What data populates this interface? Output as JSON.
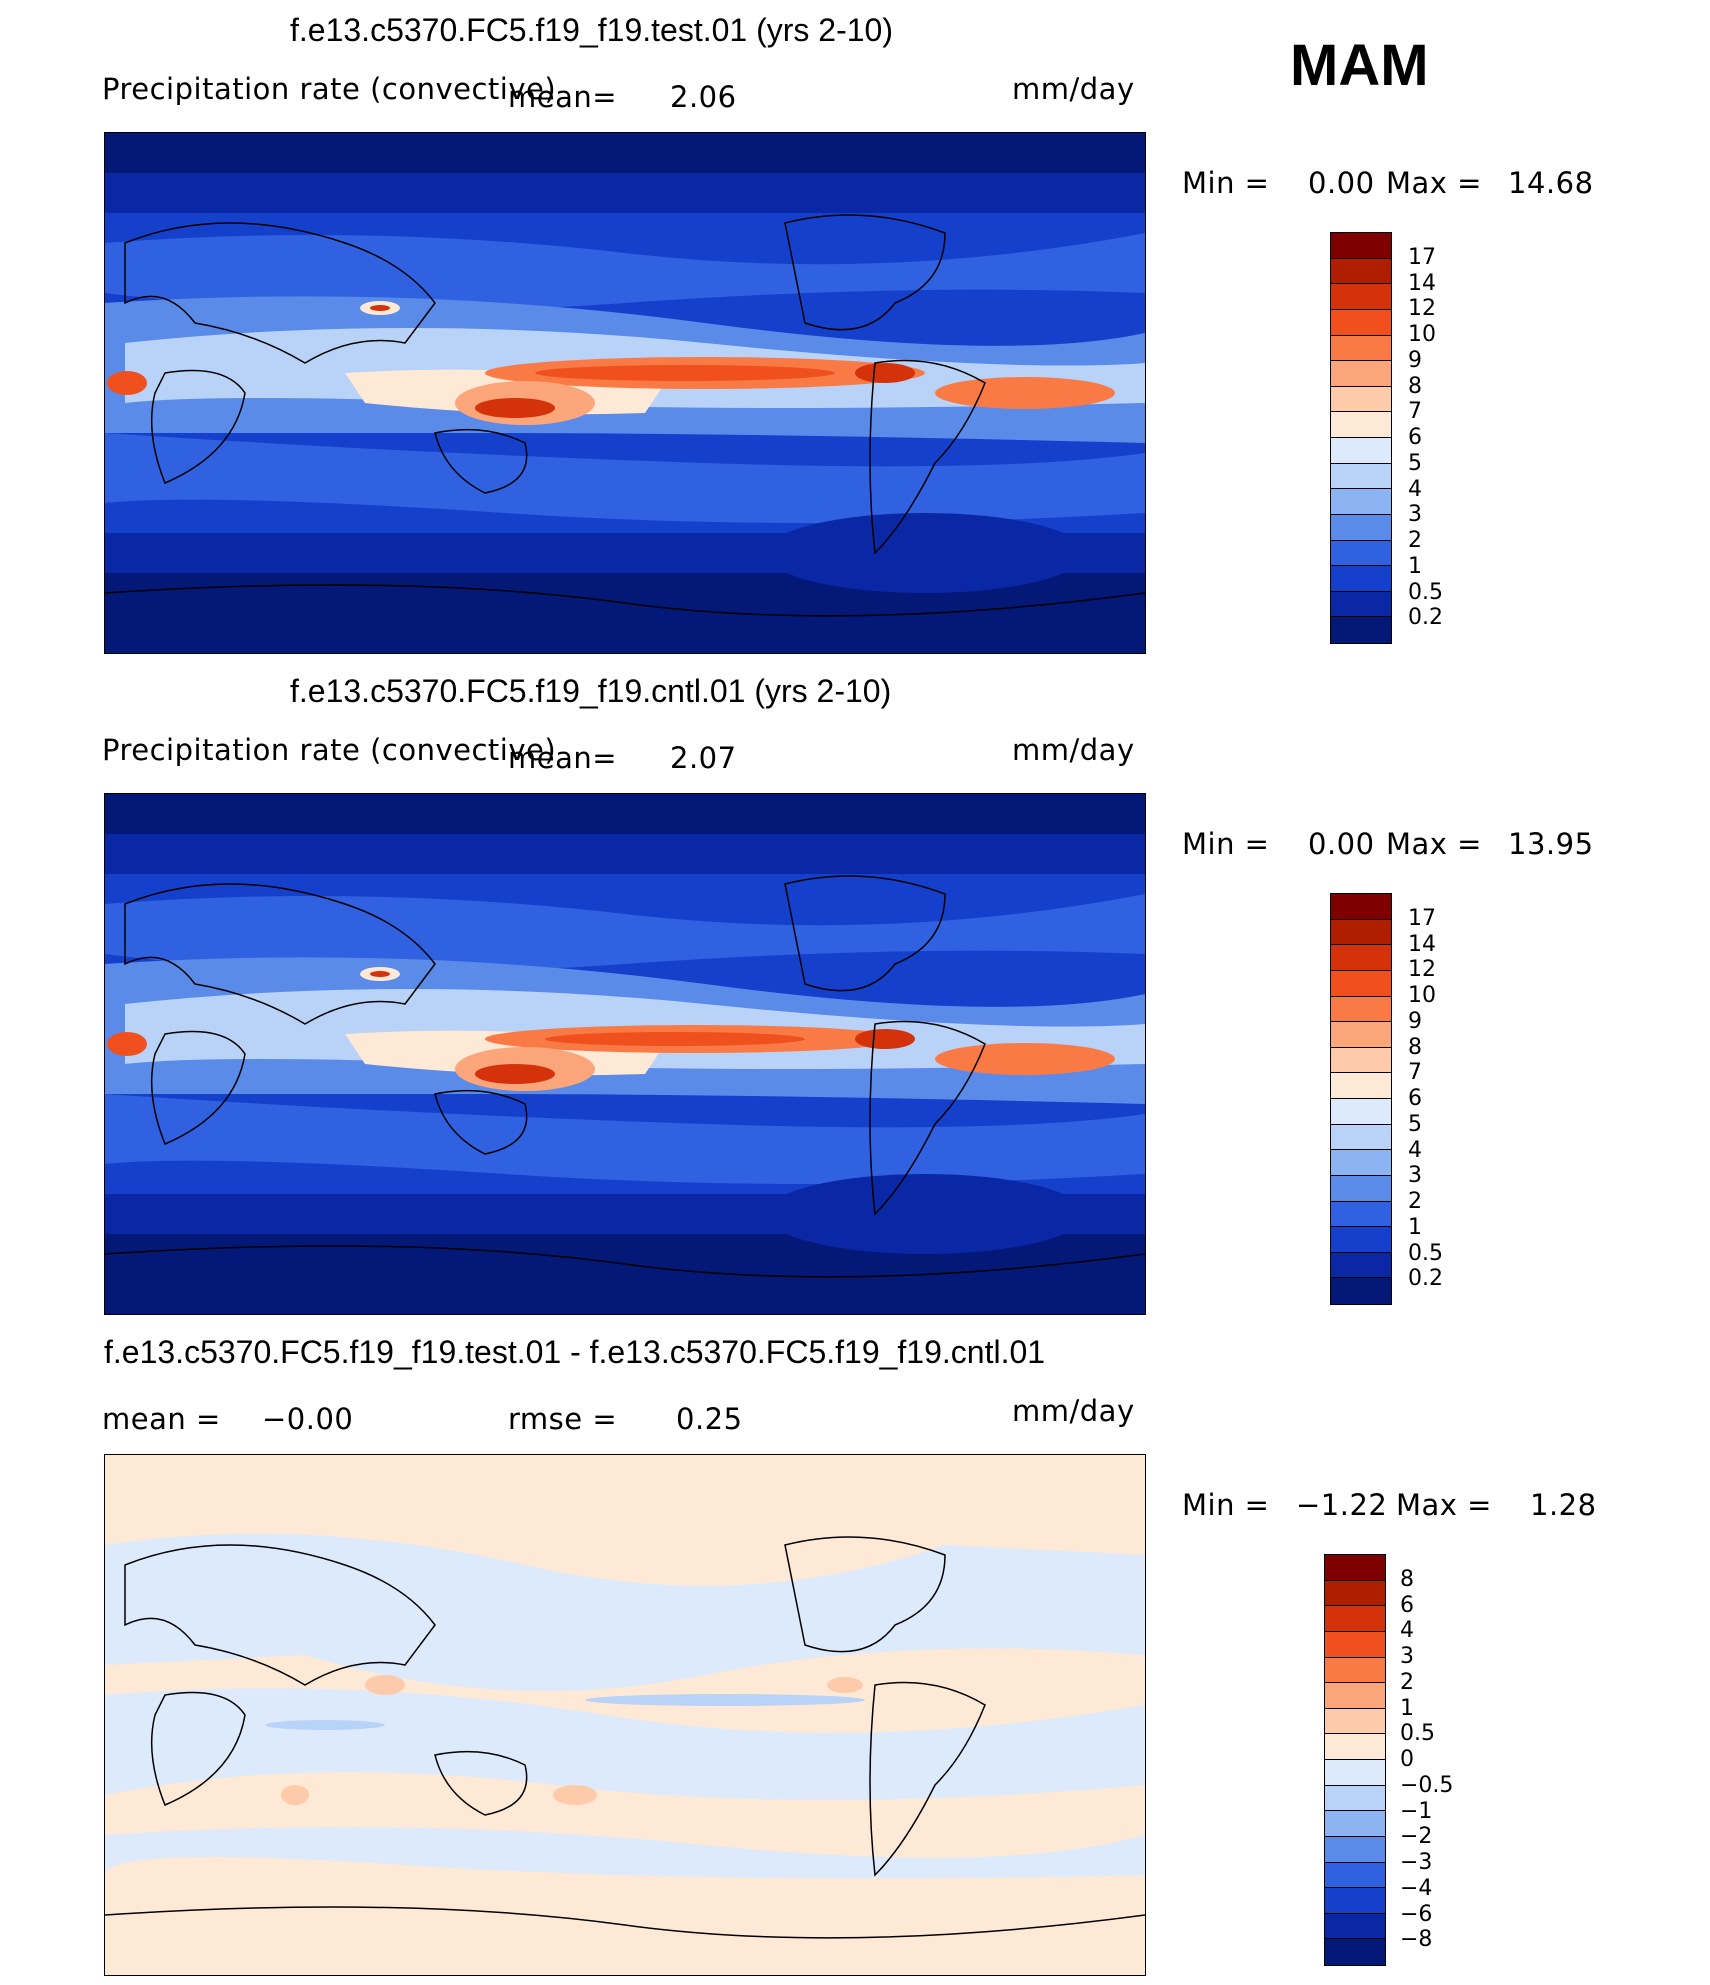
{
  "season": "MAM",
  "units": "mm/day",
  "panels": [
    {
      "title": "f.e13.c5370.FC5.f19_f19.test.01 (yrs 2-10)",
      "field_label": "Precipitation rate (convective)",
      "mean_label": "mean=",
      "mean_value": "2.06",
      "minmax_label": "Min =",
      "min_value": "0.00",
      "max_label": "Max =",
      "max_value": "14.68",
      "colorbar": {
        "labels": [
          "17",
          "14",
          "12",
          "10",
          "9",
          "8",
          "7",
          "6",
          "5",
          "4",
          "3",
          "2",
          "1",
          "0.5",
          "0.2"
        ],
        "colors": [
          "#7f0000",
          "#b01e00",
          "#d4320a",
          "#f0501e",
          "#f97a45",
          "#fba57b",
          "#fdcaaa",
          "#fde9d6",
          "#ddeafb",
          "#b8d3f7",
          "#8cb4f2",
          "#5a8be8",
          "#2f61e0",
          "#1540cc",
          "#0a28a6",
          "#041878"
        ]
      }
    },
    {
      "title": "f.e13.c5370.FC5.f19_f19.cntl.01 (yrs 2-10)",
      "field_label": "Precipitation rate (convective)",
      "mean_label": "mean=",
      "mean_value": "2.07",
      "minmax_label": "Min =",
      "min_value": "0.00",
      "max_label": "Max =",
      "max_value": "13.95",
      "colorbar": {
        "labels": [
          "17",
          "14",
          "12",
          "10",
          "9",
          "8",
          "7",
          "6",
          "5",
          "4",
          "3",
          "2",
          "1",
          "0.5",
          "0.2"
        ],
        "colors": [
          "#7f0000",
          "#b01e00",
          "#d4320a",
          "#f0501e",
          "#f97a45",
          "#fba57b",
          "#fdcaaa",
          "#fde9d6",
          "#ddeafb",
          "#b8d3f7",
          "#8cb4f2",
          "#5a8be8",
          "#2f61e0",
          "#1540cc",
          "#0a28a6",
          "#041878"
        ]
      }
    },
    {
      "title": "f.e13.c5370.FC5.f19_f19.test.01 - f.e13.c5370.FC5.f19_f19.cntl.01",
      "mean_label": "mean =",
      "mean_value": "−0.00",
      "rmse_label": "rmse =",
      "rmse_value": "0.25",
      "minmax_label": "Min =",
      "min_value": "−1.22",
      "max_label": "Max =",
      "max_value": "1.28",
      "colorbar": {
        "labels": [
          "8",
          "6",
          "4",
          "3",
          "2",
          "1",
          "0.5",
          "0",
          "−0.5",
          "−1",
          "−2",
          "−3",
          "−4",
          "−6",
          "−8"
        ],
        "colors": [
          "#7f0000",
          "#b01e00",
          "#d4320a",
          "#f0501e",
          "#f97a45",
          "#fba57b",
          "#fdcaaa",
          "#fde9d6",
          "#ddeafb",
          "#b8d3f7",
          "#8cb4f2",
          "#5a8be8",
          "#2f61e0",
          "#1540cc",
          "#0a28a6",
          "#041878"
        ]
      }
    }
  ]
}
